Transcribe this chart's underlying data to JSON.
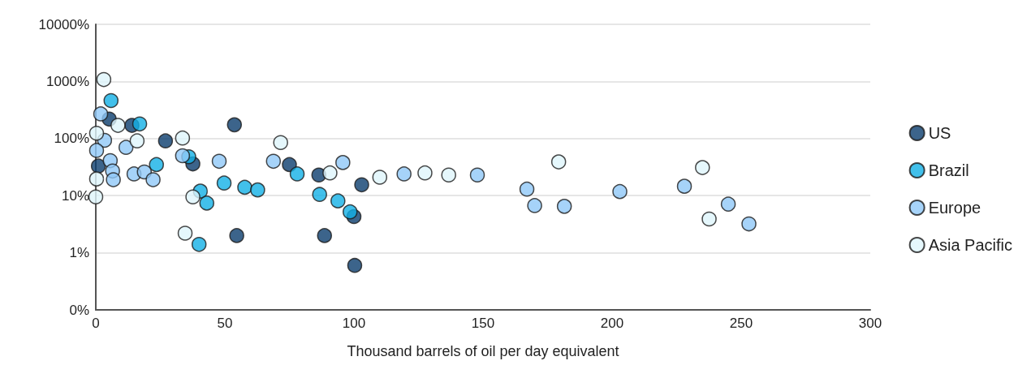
{
  "chart_data": {
    "type": "scatter",
    "xlabel": "Thousand barrels of oil per day equivalent",
    "log": "y",
    "grid": "y",
    "legend": "right",
    "marker": "circle",
    "xlim": [
      0,
      300
    ],
    "xticks": [
      0,
      50,
      100,
      150,
      200,
      250,
      300
    ],
    "ylim": [
      0.1,
      10000
    ],
    "yticks": [
      {
        "value": 0.1,
        "label": "0%"
      },
      {
        "value": 1,
        "label": "1%"
      },
      {
        "value": 10,
        "label": "10%"
      },
      {
        "value": 100,
        "label": "100%"
      },
      {
        "value": 1000,
        "label": "1000%"
      },
      {
        "value": 10000,
        "label": "10000%"
      }
    ],
    "series": [
      {
        "name": "US",
        "color": "#0b3d6e",
        "x": [
          1,
          5.2,
          14,
          27,
          37.6,
          53.7,
          54.6,
          75,
          86.4,
          88.6,
          100,
          103,
          100.3
        ],
        "values": [
          33,
          219,
          170,
          91,
          36,
          174,
          2,
          35,
          23,
          2,
          4.3,
          15.5,
          0.6
        ]
      },
      {
        "name": "Brazil",
        "color": "#13b0e6",
        "x": [
          5.9,
          17,
          23.5,
          36,
          40.5,
          43,
          40,
          49.7,
          57.7,
          62.7,
          78,
          86.7,
          93.8,
          98.5
        ],
        "values": [
          462,
          180,
          35,
          48,
          12,
          7.4,
          1.4,
          16.6,
          14,
          12.6,
          24,
          10.5,
          8.1,
          5.2
        ]
      },
      {
        "name": "Europe",
        "color": "#90c8f8",
        "x": [
          1.9,
          3.4,
          0.3,
          5.6,
          6.5,
          6.8,
          11.7,
          14.8,
          18.8,
          22.2,
          33.6,
          47.8,
          68.8,
          95.7,
          119.4,
          147.8,
          167,
          170,
          181.5,
          203,
          228,
          245,
          253
        ],
        "values": [
          270,
          93,
          62,
          41,
          27,
          19,
          70,
          24,
          26,
          19,
          50,
          40,
          40,
          38,
          24,
          23,
          13,
          6.7,
          6.5,
          11.8,
          14.6,
          7.1,
          3.2
        ]
      },
      {
        "name": "Asia Pacific",
        "color": "#dff5fb",
        "x": [
          3.1,
          0.3,
          0.3,
          0,
          8.6,
          16,
          33.6,
          71.6,
          37.6,
          34.6,
          90.7,
          110,
          127.5,
          136.7,
          179.3,
          235,
          237.6
        ],
        "values": [
          1080,
          124,
          19.6,
          9.5,
          170,
          91,
          102,
          85,
          9.5,
          2.2,
          25,
          21,
          25,
          23,
          39,
          31,
          3.9
        ]
      }
    ]
  }
}
